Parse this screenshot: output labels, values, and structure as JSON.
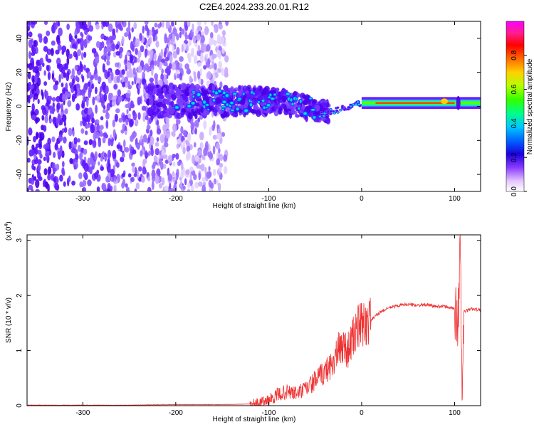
{
  "title": "C2E4.2024.233.20.01.R12",
  "chart_data": [
    {
      "type": "heatmap",
      "xlabel": "Height of straight line (km)",
      "ylabel": "Frequency (Hz)",
      "xlim": [
        -360,
        128
      ],
      "ylim": [
        -50,
        50
      ],
      "x_ticks": [
        -300,
        -200,
        -100,
        0,
        100
      ],
      "y_ticks": [
        -40,
        -20,
        0,
        20,
        40
      ],
      "colorbar": {
        "label": "Normalized spectral amplitude",
        "range": [
          0,
          1
        ],
        "ticks": [
          "0.0",
          "0.2",
          "0.4",
          "0.6",
          "0.8"
        ],
        "colors": [
          "#ffffff",
          "#e6c8ff",
          "#b07cff",
          "#7a2bff",
          "#4b00f0",
          "#0040ff",
          "#00c8ff",
          "#00ff88",
          "#4cff00",
          "#c8ff00",
          "#ffd000",
          "#ff6a00",
          "#ff0000",
          "#ff2e8a",
          "#ff00ff"
        ]
      },
      "features": {
        "noise_region_x": [
          -360,
          -145
        ],
        "signal_line_freq_hz": 2
      },
      "grid": false
    },
    {
      "type": "line",
      "xlabel": "Height of straight line (km)",
      "ylabel": "SNR (10 * v/v)",
      "y_multiplier_label": "(x10",
      "y_multiplier_exp": "4",
      "xlim": [
        -360,
        128
      ],
      "ylim": [
        0,
        3.1
      ],
      "x_ticks": [
        -300,
        -200,
        -100,
        0,
        100
      ],
      "y_ticks": [
        0,
        1,
        2,
        3
      ],
      "series": [
        {
          "color": "#ee3333",
          "x": [
            -360,
            -300,
            -250,
            -200,
            -150,
            -120,
            -110,
            -100,
            -90,
            -80,
            -70,
            -60,
            -50,
            -40,
            -30,
            -25,
            -20,
            -15,
            -10,
            -5,
            0,
            10,
            20,
            30,
            40,
            50,
            60,
            70,
            80,
            90,
            100,
            104,
            106,
            108,
            110,
            115,
            120,
            128
          ],
          "y": [
            0.01,
            0.01,
            0.01,
            0.02,
            0.02,
            0.03,
            0.05,
            0.1,
            0.2,
            0.25,
            0.22,
            0.3,
            0.45,
            0.6,
            0.8,
            1.0,
            1.1,
            1.0,
            1.2,
            1.4,
            1.45,
            1.55,
            1.7,
            1.78,
            1.82,
            1.84,
            1.82,
            1.83,
            1.8,
            1.8,
            1.76,
            1.6,
            3.1,
            0.1,
            1.7,
            1.74,
            1.76,
            1.73
          ]
        }
      ],
      "grid": false
    }
  ]
}
